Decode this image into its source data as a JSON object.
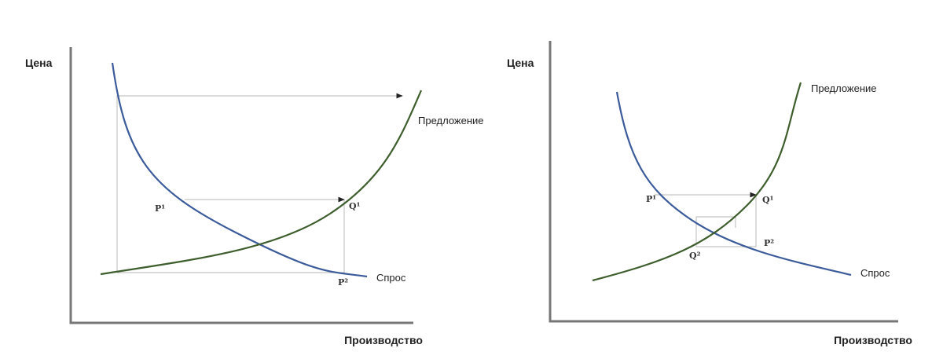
{
  "panels": [
    {
      "y_axis_label": "Цена",
      "x_axis_label": "Производство",
      "supply_label": "Предложение",
      "demand_label": "Спрос",
      "points": [
        "P¹",
        "Q¹",
        "P²"
      ]
    },
    {
      "y_axis_label": "Цена",
      "x_axis_label": "Производство",
      "supply_label": "Предложение",
      "demand_label": "Спрос",
      "points": [
        "P¹",
        "Q¹",
        "P²",
        "Q²"
      ]
    }
  ]
}
